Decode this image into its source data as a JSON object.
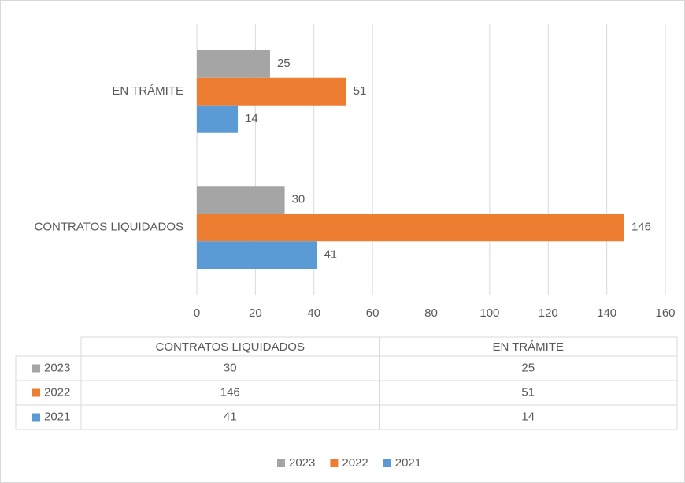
{
  "chart_data": {
    "type": "bar",
    "orientation": "horizontal",
    "categories": [
      "CONTRATOS LIQUIDADOS",
      "EN TRÁMITE"
    ],
    "series": [
      {
        "name": "2023",
        "color": "#a5a5a5",
        "values": [
          30,
          25
        ]
      },
      {
        "name": "2022",
        "color": "#ed7d31",
        "values": [
          146,
          51
        ]
      },
      {
        "name": "2021",
        "color": "#5b9bd5",
        "values": [
          41,
          14
        ]
      }
    ],
    "xlim": [
      0,
      160
    ],
    "xticks": [
      0,
      20,
      40,
      60,
      80,
      100,
      120,
      140,
      160
    ],
    "grid": true,
    "legend": "bottom",
    "data_table": true
  }
}
